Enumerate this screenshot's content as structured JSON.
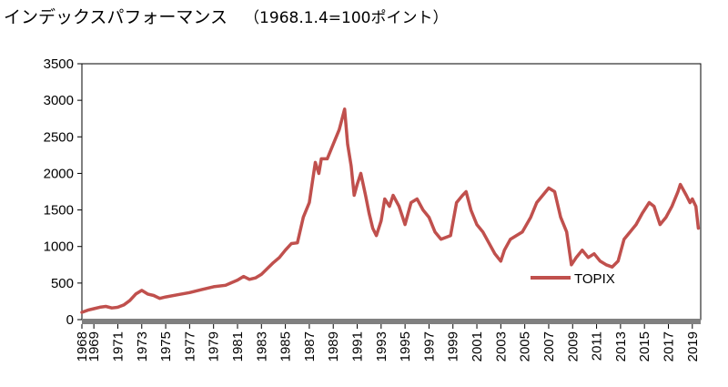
{
  "title": "インデックスパフォーマンス",
  "subtitle": "（1968.1.4=100ポイント）",
  "colors": {
    "series": "#c0504d",
    "axis": "#808080",
    "plot_border": "#000000"
  },
  "chart_data": {
    "type": "line",
    "title": "インデックスパフォーマンス",
    "subtitle": "（1968.1.4=100ポイント）",
    "xlabel": "",
    "ylabel": "",
    "xlim": [
      1968,
      2019.7
    ],
    "ylim": [
      0,
      3500
    ],
    "yticks": [
      0,
      500,
      1000,
      1500,
      2000,
      2500,
      3000,
      3500
    ],
    "xticks": [
      1968,
      1969,
      1971,
      1973,
      1975,
      1977,
      1979,
      1981,
      1983,
      1985,
      1987,
      1989,
      1991,
      1993,
      1995,
      1997,
      1999,
      2001,
      2003,
      2005,
      2007,
      2009,
      2011,
      2013,
      2015,
      2017,
      2019
    ],
    "legend": {
      "position": "center-right",
      "entries": [
        "TOPIX"
      ]
    },
    "grid": false,
    "series": [
      {
        "name": "TOPIX",
        "color": "#c0504d",
        "x": [
          1968.0,
          1968.5,
          1969.0,
          1969.5,
          1970.0,
          1970.5,
          1971.0,
          1971.5,
          1972.0,
          1972.5,
          1973.0,
          1973.5,
          1974.0,
          1974.5,
          1975.0,
          1976.0,
          1977.0,
          1978.0,
          1979.0,
          1980.0,
          1981.0,
          1981.5,
          1982.0,
          1982.5,
          1983.0,
          1983.5,
          1984.0,
          1984.5,
          1985.0,
          1985.5,
          1986.0,
          1986.5,
          1987.0,
          1987.5,
          1987.8,
          1988.0,
          1988.5,
          1989.0,
          1989.5,
          1989.95,
          1990.2,
          1990.5,
          1990.75,
          1991.0,
          1991.3,
          1991.7,
          1992.0,
          1992.3,
          1992.6,
          1993.0,
          1993.3,
          1993.7,
          1994.0,
          1994.5,
          1995.0,
          1995.5,
          1996.0,
          1996.5,
          1997.0,
          1997.5,
          1998.0,
          1998.8,
          1999.3,
          1999.8,
          2000.1,
          2000.5,
          2001.0,
          2001.5,
          2002.0,
          2002.5,
          2003.0,
          2003.3,
          2003.8,
          2004.3,
          2004.8,
          2005.5,
          2006.0,
          2006.5,
          2007.0,
          2007.5,
          2008.0,
          2008.5,
          2008.9,
          2009.3,
          2009.8,
          2010.3,
          2010.8,
          2011.3,
          2011.8,
          2012.3,
          2012.8,
          2013.3,
          2013.8,
          2014.3,
          2014.8,
          2015.4,
          2015.8,
          2016.3,
          2016.8,
          2017.3,
          2017.8,
          2018.0,
          2018.5,
          2018.8,
          2019.0,
          2019.3,
          2019.5
        ],
        "y": [
          100,
          130,
          150,
          170,
          180,
          160,
          170,
          200,
          260,
          350,
          400,
          350,
          330,
          290,
          310,
          340,
          370,
          410,
          450,
          470,
          540,
          590,
          550,
          570,
          620,
          700,
          780,
          850,
          950,
          1040,
          1050,
          1400,
          1600,
          2150,
          2000,
          2200,
          2200,
          2400,
          2600,
          2880,
          2400,
          2100,
          1700,
          1850,
          2000,
          1700,
          1450,
          1250,
          1150,
          1350,
          1650,
          1550,
          1700,
          1550,
          1300,
          1600,
          1650,
          1500,
          1400,
          1200,
          1100,
          1150,
          1600,
          1700,
          1750,
          1500,
          1300,
          1200,
          1050,
          900,
          800,
          950,
          1100,
          1150,
          1200,
          1400,
          1600,
          1700,
          1800,
          1750,
          1400,
          1200,
          750,
          850,
          950,
          850,
          900,
          800,
          750,
          720,
          800,
          1100,
          1200,
          1300,
          1450,
          1600,
          1550,
          1300,
          1400,
          1550,
          1750,
          1850,
          1700,
          1600,
          1650,
          1550,
          1250
        ]
      }
    ]
  }
}
